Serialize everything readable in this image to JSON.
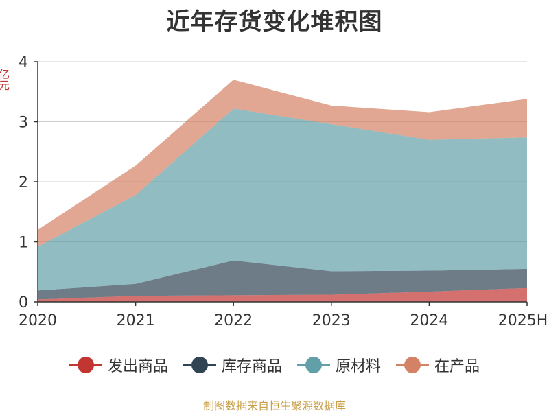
{
  "chart_data": {
    "type": "area",
    "stacked": true,
    "title": "近年存货变化堆积图",
    "ylabel": "亿元",
    "categories": [
      "2020",
      "2021",
      "2022",
      "2023",
      "2024",
      "2025H"
    ],
    "ylim": [
      0,
      4
    ],
    "yticks": [
      "0",
      "1",
      "2",
      "3",
      "4"
    ],
    "grid": true,
    "legend_position": "bottom",
    "series": [
      {
        "name": "发出商品",
        "color": "#c23531",
        "values": [
          0.04,
          0.1,
          0.11,
          0.12,
          0.17,
          0.23
        ]
      },
      {
        "name": "库存商品",
        "color": "#2f4554",
        "values": [
          0.15,
          0.2,
          0.58,
          0.39,
          0.35,
          0.32
        ]
      },
      {
        "name": "原材料",
        "color": "#61a0a8",
        "values": [
          0.73,
          1.48,
          2.53,
          2.45,
          2.18,
          2.19
        ]
      },
      {
        "name": "在产品",
        "color": "#d48265",
        "values": [
          0.28,
          0.49,
          0.48,
          0.31,
          0.46,
          0.64
        ]
      }
    ]
  },
  "source_text": "制图数据来自恒生聚源数据库"
}
